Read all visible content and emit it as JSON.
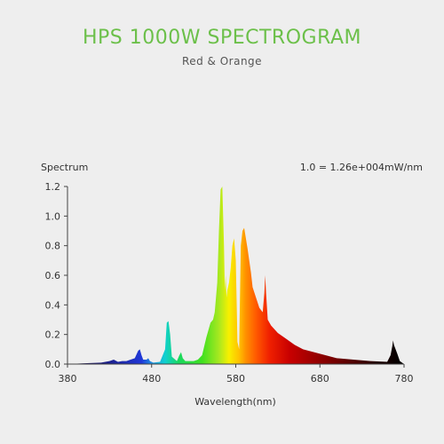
{
  "header": {
    "title": "HPS 1000W SPECTROGRAM",
    "subtitle": "Red & Orange"
  },
  "chart_data": {
    "type": "area",
    "title": "HPS 1000W SPECTROGRAM",
    "subtitle": "Red & Orange",
    "ylabel": "Spectrum",
    "xlabel": "Wavelength(nm)",
    "unit_note": "1.0 = 1.26e+004mW/nm",
    "xlim": [
      380,
      780
    ],
    "ylim": [
      0,
      1.2
    ],
    "xticks": [
      380,
      480,
      580,
      680,
      780
    ],
    "yticks": [
      0.0,
      0.2,
      0.4,
      0.6,
      0.8,
      1.0,
      1.2
    ],
    "ytick_labels": [
      "0.0",
      "0.2",
      "0.4",
      "0.6",
      "0.8",
      "1.0",
      "1.2"
    ],
    "grid": false,
    "series": [
      {
        "x": [
          380,
          400,
          420,
          430,
          435,
          440,
          445,
          450,
          460,
          464,
          466,
          468,
          470,
          474,
          476,
          478,
          482,
          490,
          496,
          498,
          500,
          502,
          504,
          510,
          513,
          515,
          517,
          520,
          530,
          535,
          540,
          545,
          550,
          553,
          555,
          558,
          560,
          562,
          564,
          566,
          567,
          568,
          569,
          570,
          572,
          574,
          576,
          578,
          580,
          582,
          584,
          586,
          588,
          590,
          592,
          594,
          596,
          598,
          600,
          604,
          608,
          612,
          614,
          615,
          616,
          618,
          622,
          630,
          640,
          650,
          660,
          680,
          700,
          720,
          740,
          760,
          764,
          766,
          767,
          768,
          770,
          772,
          775,
          780
        ],
        "y": [
          0.0,
          0.005,
          0.01,
          0.02,
          0.03,
          0.015,
          0.02,
          0.02,
          0.04,
          0.09,
          0.1,
          0.06,
          0.03,
          0.03,
          0.04,
          0.02,
          0.01,
          0.015,
          0.1,
          0.28,
          0.29,
          0.2,
          0.05,
          0.02,
          0.06,
          0.08,
          0.04,
          0.02,
          0.02,
          0.03,
          0.06,
          0.18,
          0.28,
          0.3,
          0.35,
          0.55,
          0.9,
          1.18,
          1.2,
          0.8,
          0.5,
          0.6,
          0.45,
          0.5,
          0.55,
          0.65,
          0.8,
          0.85,
          0.7,
          0.15,
          0.1,
          0.8,
          0.9,
          0.92,
          0.85,
          0.78,
          0.7,
          0.62,
          0.52,
          0.45,
          0.38,
          0.35,
          0.48,
          0.6,
          0.48,
          0.3,
          0.26,
          0.21,
          0.17,
          0.13,
          0.1,
          0.07,
          0.04,
          0.03,
          0.02,
          0.015,
          0.06,
          0.12,
          0.16,
          0.13,
          0.1,
          0.07,
          0.02,
          0.0
        ]
      }
    ]
  }
}
